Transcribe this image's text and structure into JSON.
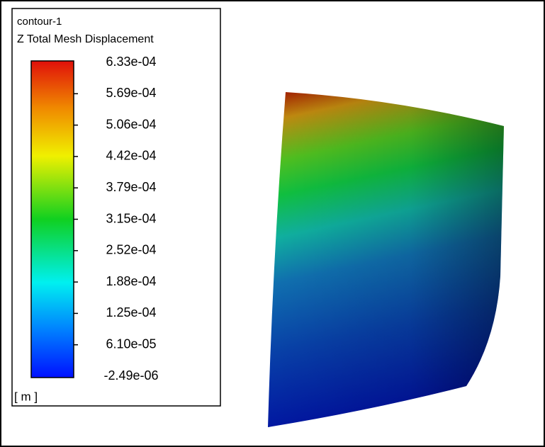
{
  "legend": {
    "title": "contour-1",
    "subtitle": "Z Total Mesh Displacement",
    "levels": [
      "6.33e-04",
      "5.69e-04",
      "5.06e-04",
      "4.42e-04",
      "3.79e-04",
      "3.15e-04",
      "2.52e-04",
      "1.88e-04",
      "1.25e-04",
      "6.10e-05",
      "-2.49e-06"
    ],
    "unit": "[ m ]"
  }
}
